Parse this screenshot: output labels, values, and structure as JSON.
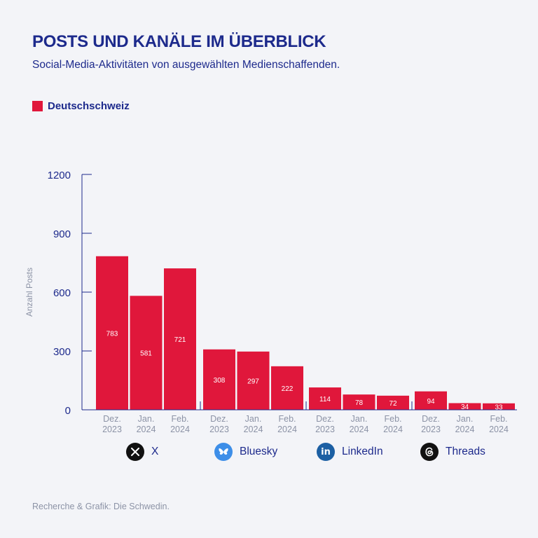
{
  "title": "POSTS UND KANÄLE IM ÜBERBLICK",
  "subtitle": "Social-Media-Aktivitäten von ausgewählten Medienschaffenden.",
  "legend": {
    "label": "Deutschschweiz",
    "color": "#e0173b"
  },
  "footer": "Recherche & Grafik: Die Schwedin.",
  "platforms": [
    {
      "label": "X",
      "icon": "x-logo-icon",
      "color": "#111111"
    },
    {
      "label": "Bluesky",
      "icon": "bluesky-butterfly-icon",
      "color": "#3d8ee8"
    },
    {
      "label": "LinkedIn",
      "icon": "linkedin-icon",
      "color": "#1c5fa3"
    },
    {
      "label": "Threads",
      "icon": "threads-icon",
      "color": "#111111"
    }
  ],
  "chart_data": {
    "type": "bar",
    "ylabel": "Anzahl Posts",
    "ylim": [
      0,
      1200
    ],
    "yticks": [
      "0",
      "300",
      "600",
      "900",
      "1200"
    ],
    "grid": false,
    "legend_position": "top-left",
    "groups": [
      {
        "platform": "X",
        "categories": [
          "Dez. 2023",
          "Jan. 2024",
          "Feb. 2024"
        ],
        "values": [
          783,
          581,
          721
        ]
      },
      {
        "platform": "Bluesky",
        "categories": [
          "Dez. 2023",
          "Jan. 2024",
          "Feb. 2024"
        ],
        "values": [
          308,
          297,
          222
        ]
      },
      {
        "platform": "LinkedIn",
        "categories": [
          "Dez. 2023",
          "Jan. 2024",
          "Feb. 2024"
        ],
        "values": [
          114,
          78,
          72
        ]
      },
      {
        "platform": "Threads",
        "categories": [
          "Dez. 2023",
          "Jan. 2024",
          "Feb. 2024"
        ],
        "values": [
          94,
          34,
          33
        ]
      }
    ],
    "series": [
      {
        "name": "Deutschschweiz",
        "color": "#e0173b"
      }
    ]
  }
}
